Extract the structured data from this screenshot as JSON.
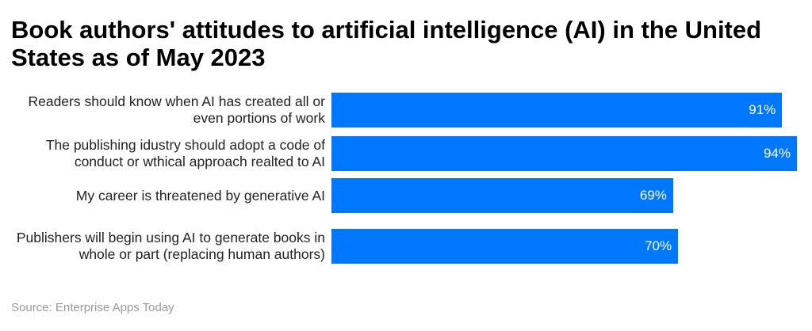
{
  "chart_data": {
    "type": "bar",
    "orientation": "horizontal",
    "title": "Book authors' attitudes to artificial intelligence (AI) in the United States as of May 2023",
    "categories": [
      "Readers should know when AI has created all or even portions of work",
      "The publishing idustry should adopt a code of conduct or wthical approach realted to AI",
      "My career is threatened by generative AI",
      "Publishers will begin using AI to generate books in whole or part (replacing human authors)"
    ],
    "values": [
      91,
      94,
      69,
      70
    ],
    "value_labels": [
      "91%",
      "94%",
      "69%",
      "70%"
    ],
    "unit": "%",
    "xlim": [
      0,
      94
    ],
    "grid": false,
    "bar_color": "#0077ff"
  },
  "source": "Source: Enterprise Apps Today"
}
